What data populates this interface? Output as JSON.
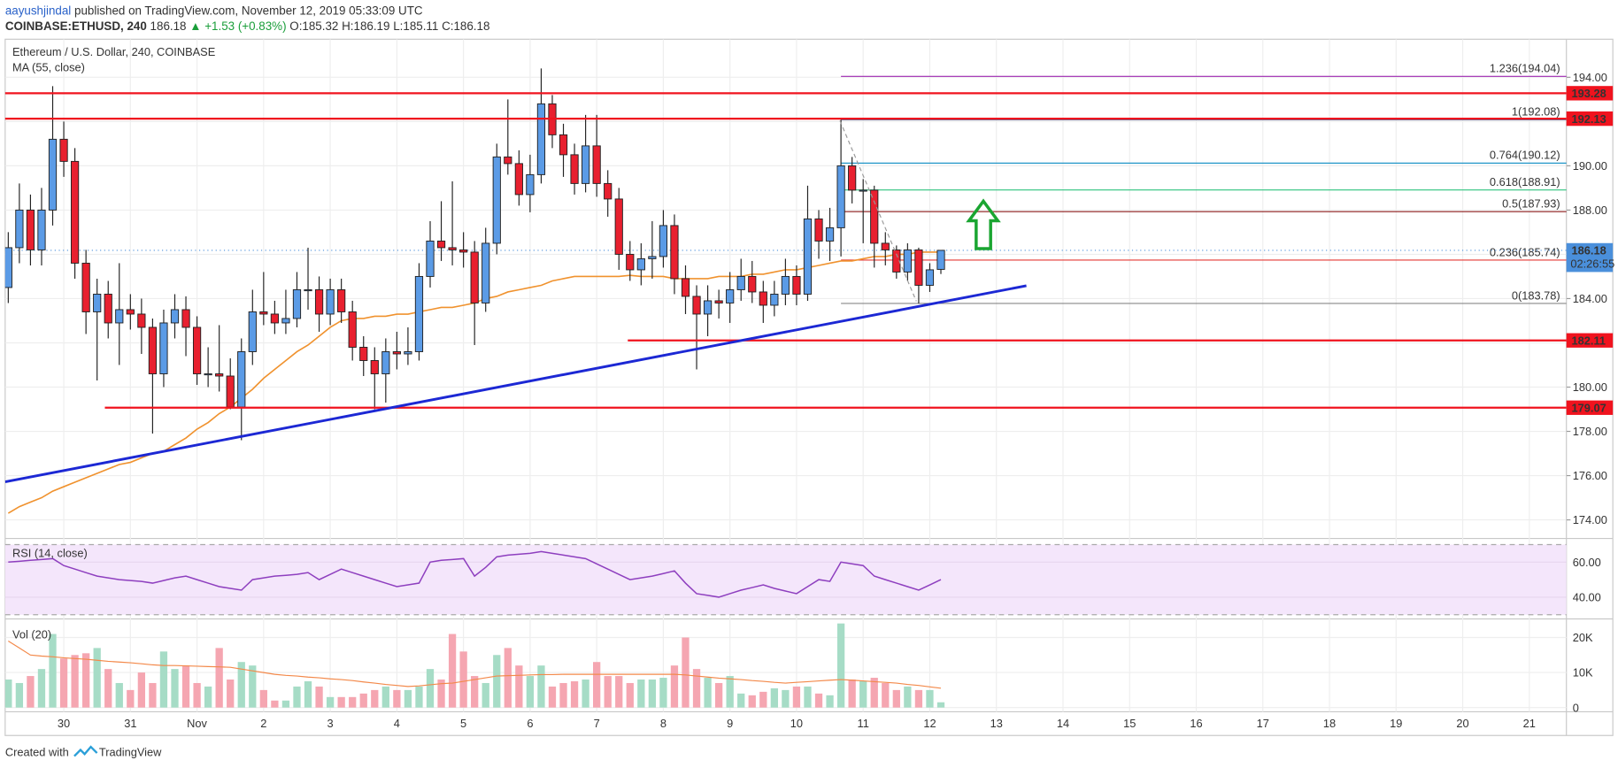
{
  "header": {
    "publisher_name": "aayushjindal",
    "published": "published on TradingView.com, November 12, 2019 05:33:09 UTC",
    "symbol": "COINBASE:ETHUSD, 240",
    "last": "186.18",
    "change": "▲ +1.53 (+0.83%)",
    "ohlc": [
      "O:185.32",
      "H:186.19",
      "L:185.11",
      "C:186.18"
    ]
  },
  "footer": {
    "created": "Created with",
    "brand": "TradingView"
  },
  "chart_data": {
    "type": "candlestick",
    "title": "Ethereum / U.S. Dollar, 240, COINBASE",
    "xlim": [
      -0.28,
      140.34
    ],
    "xticks": [
      {
        "value": 5,
        "label": "30"
      },
      {
        "value": 11,
        "label": "31"
      },
      {
        "value": 17,
        "label": "Nov"
      },
      {
        "value": 23,
        "label": "2"
      },
      {
        "value": 29,
        "label": "3"
      },
      {
        "value": 35,
        "label": "4"
      },
      {
        "value": 41,
        "label": "5"
      },
      {
        "value": 47,
        "label": "6"
      },
      {
        "value": 53,
        "label": "7"
      },
      {
        "value": 59,
        "label": "8"
      },
      {
        "value": 65,
        "label": "9"
      },
      {
        "value": 71,
        "label": "10"
      },
      {
        "value": 77,
        "label": "11"
      },
      {
        "value": 83,
        "label": "12"
      },
      {
        "value": 89,
        "label": "13"
      },
      {
        "value": 95,
        "label": "14"
      },
      {
        "value": 101,
        "label": "15"
      },
      {
        "value": 107,
        "label": "16"
      },
      {
        "value": 113,
        "label": "17"
      },
      {
        "value": 119,
        "label": "18"
      },
      {
        "value": 125,
        "label": "19"
      },
      {
        "value": 131,
        "label": "20"
      },
      {
        "value": 137,
        "label": "21"
      }
    ],
    "ylim": [
      173.16,
      195.72
    ],
    "yticks": [
      {
        "value": 174,
        "label": "174.00"
      },
      {
        "value": 176,
        "label": "176.00"
      },
      {
        "value": 178,
        "label": "178.00"
      },
      {
        "value": 180,
        "label": "180.00"
      },
      {
        "value": 182,
        "label": "182.00"
      },
      {
        "value": 184,
        "label": "184.00"
      },
      {
        "value": 186,
        "label": "186.00"
      },
      {
        "value": 188,
        "label": "188.00"
      },
      {
        "value": 190,
        "label": "190.00"
      },
      {
        "value": 192,
        "label": "192.00"
      },
      {
        "value": 194,
        "label": "194.00"
      }
    ],
    "grid": true,
    "up_color": "#5b9be6",
    "down_color": "#e8202f",
    "open": [
      184.5,
      186.3,
      188,
      186.2,
      188,
      191.2,
      190.2,
      185.6,
      183.4,
      184.2,
      182.9,
      183.5,
      183.3,
      182.7,
      180.6,
      182.9,
      183.5,
      182.7,
      180.6,
      180.6,
      180.5,
      179.1,
      181.6,
      183.4,
      183.3,
      182.9,
      183.1,
      184.4,
      184.4,
      183.3,
      184.4,
      183.4,
      181.8,
      181.2,
      180.6,
      181.6,
      181.5,
      181.6,
      185,
      186.6,
      186.3,
      186.2,
      186.1,
      183.8,
      186.5,
      190.4,
      190.1,
      188.7,
      189.6,
      192.8,
      191.4,
      190.5,
      189.2,
      190.9,
      189.2,
      188.5,
      186,
      185.3,
      185.8,
      185.9,
      187.3,
      184.9,
      184.1,
      183.3,
      183.9,
      183.8,
      184.4,
      185,
      184.3,
      183.7,
      184.2,
      185,
      184.2,
      187.6,
      186.6,
      187.2,
      190,
      188.9,
      188.9,
      186.5,
      186.2,
      185.2,
      186.2,
      184.6,
      185.32
    ],
    "high": [
      187,
      189.2,
      188.7,
      189,
      193.6,
      192,
      190.8,
      186.2,
      184.9,
      184.8,
      185.6,
      184.2,
      184,
      183.1,
      183.5,
      184.2,
      184.1,
      183.2,
      181.8,
      182.8,
      181.3,
      182.2,
      184.4,
      185.2,
      183.9,
      184.4,
      185.2,
      186.3,
      185,
      184.9,
      184.9,
      183.9,
      182.3,
      181.8,
      182.2,
      182.5,
      182.7,
      185.6,
      187.5,
      188.4,
      189.3,
      187,
      186.6,
      187.2,
      191,
      193,
      190.7,
      190.5,
      194.4,
      193.2,
      191.9,
      191,
      192.3,
      192.3,
      189.8,
      189,
      186.6,
      186.5,
      187.5,
      188,
      187.8,
      185.5,
      184.6,
      184.6,
      184.4,
      185.2,
      185.8,
      185.7,
      184.8,
      184.8,
      185.8,
      185.5,
      189.1,
      188,
      188.1,
      192.08,
      190.4,
      189.4,
      189.1,
      187,
      186.4,
      186.5,
      186.3,
      185.6,
      186.19
    ],
    "low": [
      183.8,
      185.6,
      185.5,
      185.5,
      187.3,
      189.5,
      184.9,
      182.4,
      180.3,
      182.2,
      181,
      182.6,
      181.5,
      177.9,
      180,
      182.2,
      181.4,
      180.1,
      180,
      179.8,
      179,
      177.6,
      181,
      182.8,
      182.4,
      182.4,
      182.7,
      183.5,
      182.5,
      182.8,
      182.9,
      181.2,
      180.5,
      179,
      179.3,
      180.8,
      181,
      181.2,
      184.5,
      185.7,
      185.5,
      185.4,
      181.9,
      183.4,
      186,
      189.6,
      188.2,
      187.9,
      189.2,
      190.8,
      189.5,
      188.7,
      188.8,
      188.6,
      187.7,
      185.3,
      184.8,
      184.6,
      184.9,
      185.4,
      184.2,
      183.3,
      180.8,
      182.3,
      183.1,
      182.9,
      183.9,
      183.8,
      182.9,
      183.2,
      183.7,
      183.7,
      183.9,
      185.8,
      185.7,
      185.9,
      188.3,
      186.5,
      185.4,
      185.5,
      184.9,
      184.8,
      183.78,
      184.3,
      185.11
    ],
    "close": [
      186.3,
      188,
      186.2,
      188,
      191.2,
      190.2,
      185.6,
      183.4,
      184.2,
      182.9,
      183.5,
      183.3,
      182.7,
      180.6,
      182.9,
      183.5,
      182.7,
      180.6,
      180.6,
      180.5,
      179.1,
      181.6,
      183.4,
      183.3,
      182.9,
      183.1,
      184.4,
      184.4,
      183.3,
      184.4,
      183.4,
      181.8,
      181.2,
      180.6,
      181.6,
      181.5,
      181.6,
      185,
      186.6,
      186.3,
      186.2,
      186.1,
      183.8,
      186.5,
      190.4,
      190.1,
      188.7,
      189.6,
      192.8,
      191.4,
      190.5,
      189.2,
      190.9,
      189.2,
      188.5,
      186,
      185.3,
      185.8,
      185.9,
      187.3,
      184.9,
      184.1,
      183.3,
      183.9,
      183.8,
      184.4,
      185,
      184.3,
      183.7,
      184.2,
      185,
      184.2,
      187.6,
      186.6,
      187.2,
      190,
      188.9,
      188.9,
      186.5,
      186.2,
      185.2,
      186.2,
      184.6,
      185.3,
      186.18
    ],
    "ma": {
      "name": "MA (55, close)",
      "color": "#f0922e",
      "values": [
        174.3,
        174.6,
        174.8,
        175.0,
        175.3,
        175.5,
        175.7,
        175.9,
        176.1,
        176.3,
        176.5,
        176.6,
        176.8,
        177.0,
        177.1,
        177.4,
        177.7,
        178.1,
        178.4,
        178.8,
        179.1,
        179.5,
        179.9,
        180.4,
        180.8,
        181.2,
        181.6,
        181.9,
        182.3,
        182.7,
        183.0,
        183.1,
        183.1,
        183.2,
        183.2,
        183.3,
        183.3,
        183.4,
        183.5,
        183.6,
        183.6,
        183.7,
        183.8,
        184.0,
        184.1,
        184.3,
        184.4,
        184.5,
        184.6,
        184.8,
        184.9,
        185.0,
        185.0,
        185.0,
        185.0,
        185.0,
        185.05,
        185.0,
        185.0,
        185.0,
        184.9,
        184.9,
        184.9,
        184.9,
        185.0,
        185.0,
        185.0,
        185.1,
        185.1,
        185.2,
        185.3,
        185.3,
        185.4,
        185.5,
        185.6,
        185.7,
        185.7,
        185.8,
        185.9,
        185.9,
        186.0,
        186.0,
        186.1,
        186.1,
        186.1
      ]
    },
    "levels": [
      {
        "value": 193.28,
        "start": -0.28,
        "color": "#f0131e"
      },
      {
        "value": 192.13,
        "start": -0.28,
        "color": "#f0131e"
      },
      {
        "value": 182.11,
        "start": 55.8,
        "color": "#f0131e"
      },
      {
        "value": 179.07,
        "start": 8.7,
        "color": "#f0131e"
      }
    ],
    "fib": {
      "start": 75,
      "levels": [
        {
          "price": 194.04,
          "label": "1.236(194.04)",
          "color": "#9c27b0"
        },
        {
          "price": 192.08,
          "label": "1(192.08)",
          "color": "#5a7fa8"
        },
        {
          "price": 190.12,
          "label": "0.764(190.12)",
          "color": "#2196c8"
        },
        {
          "price": 188.91,
          "label": "0.618(188.91)",
          "color": "#2ec27e"
        },
        {
          "price": 187.93,
          "label": "0.5(187.93)",
          "color": "#8b1a1a"
        },
        {
          "price": 185.74,
          "label": "0.236(185.74)",
          "color": "#e53935"
        },
        {
          "price": 183.78,
          "label": "0(183.78)",
          "color": "#888888"
        }
      ]
    },
    "trendline": {
      "x": [
        -0.28,
        91.7
      ],
      "y": [
        175.72,
        184.58
      ],
      "color": "#1c28d4"
    },
    "current_price": {
      "value": 186.18,
      "countdown": "02:26:55",
      "color": "#4a8fdb"
    },
    "rsi": {
      "name": "RSI (14, close)",
      "color": "#8e3fbf",
      "ylim": [
        27.6,
        73.5
      ],
      "yticks": [
        {
          "value": 60,
          "label": "60.00"
        },
        {
          "value": 40,
          "label": "40.00"
        }
      ],
      "bands": [
        30,
        70
      ],
      "values": [
        60,
        60.5,
        61,
        61.5,
        62,
        58,
        56,
        54,
        52,
        51,
        50,
        49.5,
        49,
        48,
        49.5,
        51,
        52,
        50,
        48,
        46,
        45,
        44,
        50,
        51,
        52,
        52.5,
        53,
        54,
        50,
        53,
        56,
        54,
        52,
        50,
        48,
        46,
        47,
        48,
        60,
        61,
        61.5,
        62,
        52,
        57,
        63,
        64,
        64.5,
        65,
        66,
        65,
        64,
        63,
        62,
        59,
        56,
        53,
        50,
        51,
        52,
        53.5,
        55,
        48,
        42,
        41,
        40,
        42,
        44,
        45.5,
        47,
        45,
        43.5,
        42,
        46,
        50,
        49,
        60,
        59,
        58,
        52,
        50,
        48,
        46,
        44,
        47,
        50
      ]
    },
    "volume": {
      "name": "Vol (20)",
      "ylim": [
        -1200,
        25300
      ],
      "yticks": [
        {
          "value": 20000,
          "label": "20K"
        },
        {
          "value": 10000,
          "label": "10K"
        },
        0
      ],
      "up_color": "#a6dcc6",
      "down_color": "#f5a6b1",
      "ma_color": "#f3894a",
      "values": [
        8000,
        7000,
        9000,
        11000,
        21000,
        14000,
        15000,
        15500,
        17000,
        11000,
        7000,
        5000,
        10000,
        7000,
        16000,
        11000,
        12000,
        7000,
        6000,
        17000,
        8000,
        13000,
        12000,
        5000,
        2000,
        2000,
        6000,
        7500,
        6000,
        3000,
        3000,
        3000,
        4000,
        5000,
        6000,
        5000,
        5000,
        6000,
        11000,
        8000,
        21000,
        16000,
        9000,
        7000,
        15000,
        17000,
        12000,
        9000,
        12000,
        6000,
        7000,
        7500,
        8000,
        13000,
        9000,
        9000,
        7000,
        8000,
        8000,
        8500,
        12000,
        20000,
        11000,
        8500,
        7000,
        9000,
        4000,
        3500,
        4500,
        5500,
        5000,
        6000,
        6000,
        4000,
        3500,
        24000,
        8000,
        7500,
        8500,
        7000,
        5000,
        6000,
        5000,
        5000,
        1500
      ],
      "ma": [
        19000,
        17000,
        15000,
        14700,
        14500,
        14200,
        14000,
        13800,
        13500,
        13200,
        13000,
        12800,
        12500,
        12200,
        12000,
        12000,
        11900,
        11800,
        11700,
        11600,
        11500,
        11000,
        10500,
        10000,
        9500,
        9200,
        9000,
        8700,
        8500,
        8200,
        8000,
        7700,
        7300,
        7000,
        6600,
        6300,
        6000,
        6200,
        6500,
        6800,
        7000,
        7500,
        8000,
        8500,
        9000,
        9100,
        9200,
        9300,
        9400,
        9400,
        9500,
        9500,
        9500,
        9500,
        9500,
        9500,
        9500,
        9500,
        9500,
        9500,
        9500,
        9300,
        9000,
        8700,
        8400,
        8200,
        8000,
        7700,
        7500,
        7200,
        7000,
        7200,
        7400,
        7600,
        7800,
        8000,
        7800,
        7600,
        7400,
        7200,
        7000,
        6600,
        6300,
        5900,
        5500
      ]
    }
  }
}
